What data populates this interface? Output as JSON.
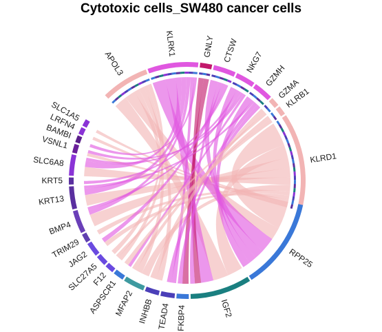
{
  "chart_data": {
    "type": "chord",
    "title": "Cytotoxic cells_SW480 cancer cells",
    "sources": [
      {
        "name": "APOL3",
        "color": "#f2b4b4",
        "weight": 3.2
      },
      {
        "name": "KLRK1",
        "color": "#e057e0",
        "weight": 3.4
      },
      {
        "name": "GNLY",
        "color": "#c2186b",
        "weight": 0.8
      },
      {
        "name": "CTSW",
        "color": "#e057e0",
        "weight": 1.5
      },
      {
        "name": "NKG7",
        "color": "#e057e0",
        "weight": 1.3
      },
      {
        "name": "GZMH",
        "color": "#e057e0",
        "weight": 1.3
      },
      {
        "name": "GZMA",
        "color": "#f2b4b4",
        "weight": 0.6
      },
      {
        "name": "KLRB1",
        "color": "#f2b4b4",
        "weight": 0.6
      },
      {
        "name": "KLRD1",
        "color": "#f2b4b4",
        "weight": 6.6
      }
    ],
    "targets": [
      {
        "name": "RPP25",
        "color": "#3a78d8",
        "weight": 5.2
      },
      {
        "name": "IGF2",
        "color": "#1a7f80",
        "weight": 3.5
      },
      {
        "name": "FKBP4",
        "color": "#3a78d8",
        "weight": 0.7
      },
      {
        "name": "TEAD4",
        "color": "#4b3fb8",
        "weight": 0.8
      },
      {
        "name": "INHBB",
        "color": "#4b3fb8",
        "weight": 0.8
      },
      {
        "name": "MFAP2",
        "color": "#3e9aa0",
        "weight": 1.2
      },
      {
        "name": "ASPSCR1",
        "color": "#3a78d8",
        "weight": 0.6
      },
      {
        "name": "F12",
        "color": "#6a4ae0",
        "weight": 0.5
      },
      {
        "name": "SLC27A5",
        "color": "#6a4ae0",
        "weight": 0.6
      },
      {
        "name": "JAG2",
        "color": "#6a4ae0",
        "weight": 0.8
      },
      {
        "name": "TRIM29",
        "color": "#5f3fb0",
        "weight": 0.5
      },
      {
        "name": "BMP4",
        "color": "#6a3fb8",
        "weight": 1.3
      },
      {
        "name": "KRT13",
        "color": "#5a2f9f",
        "weight": 1.3
      },
      {
        "name": "KRT5",
        "color": "#5a2f9f",
        "weight": 0.4
      },
      {
        "name": "SLC6A8",
        "color": "#8a33d6",
        "weight": 1.2
      },
      {
        "name": "VSNL1",
        "color": "#6a1f9a",
        "weight": 0.5
      },
      {
        "name": "BAMBI",
        "color": "#5a1f8a",
        "weight": 0.4
      },
      {
        "name": "LRFN4",
        "color": "#8a33d6",
        "weight": 0.4
      },
      {
        "name": "SLC1A5",
        "color": "#8a33d6",
        "weight": 0.4
      }
    ],
    "links": [
      {
        "source": "KLRD1",
        "target": "RPP25",
        "value": 1.8
      },
      {
        "source": "KLRD1",
        "target": "IGF2",
        "value": 1.0
      },
      {
        "source": "KLRD1",
        "target": "BMP4",
        "value": 0.8
      },
      {
        "source": "KLRD1",
        "target": "KRT13",
        "value": 0.7
      },
      {
        "source": "KLRD1",
        "target": "SLC6A8",
        "value": 0.6
      },
      {
        "source": "KLRD1",
        "target": "MFAP2",
        "value": 0.5
      },
      {
        "source": "KLRD1",
        "target": "TRIM29",
        "value": 0.3
      },
      {
        "source": "KLRD1",
        "target": "JAG2",
        "value": 0.3
      },
      {
        "source": "KLRD1",
        "target": "VSNL1",
        "value": 0.2
      },
      {
        "source": "KLRD1",
        "target": "SLC1A5",
        "value": 0.2
      },
      {
        "source": "KLRD1",
        "target": "LRFN4",
        "value": 0.2
      },
      {
        "source": "APOL3",
        "target": "IGF2",
        "value": 1.0
      },
      {
        "source": "APOL3",
        "target": "RPP25",
        "value": 0.8
      },
      {
        "source": "APOL3",
        "target": "MFAP2",
        "value": 0.4
      },
      {
        "source": "APOL3",
        "target": "INHBB",
        "value": 0.4
      },
      {
        "source": "APOL3",
        "target": "SLC27A5",
        "value": 0.3
      },
      {
        "source": "APOL3",
        "target": "F12",
        "value": 0.3
      },
      {
        "source": "KLRK1",
        "target": "RPP25",
        "value": 1.0
      },
      {
        "source": "KLRK1",
        "target": "IGF2",
        "value": 0.8
      },
      {
        "source": "KLRK1",
        "target": "SLC6A8",
        "value": 0.4
      },
      {
        "source": "KLRK1",
        "target": "KRT13",
        "value": 0.4
      },
      {
        "source": "KLRK1",
        "target": "BMP4",
        "value": 0.3
      },
      {
        "source": "KLRK1",
        "target": "TEAD4",
        "value": 0.3
      },
      {
        "source": "KLRK1",
        "target": "BAMBI",
        "value": 0.2
      },
      {
        "source": "GNLY",
        "target": "IGF2",
        "value": 0.4
      },
      {
        "source": "GNLY",
        "target": "FKBP4",
        "value": 0.4
      },
      {
        "source": "CTSW",
        "target": "RPP25",
        "value": 0.6
      },
      {
        "source": "CTSW",
        "target": "IGF2",
        "value": 0.3
      },
      {
        "source": "CTSW",
        "target": "JAG2",
        "value": 0.3
      },
      {
        "source": "CTSW",
        "target": "KRT5",
        "value": 0.2
      },
      {
        "source": "NKG7",
        "target": "RPP25",
        "value": 0.5
      },
      {
        "source": "NKG7",
        "target": "SLC6A8",
        "value": 0.2
      },
      {
        "source": "NKG7",
        "target": "BMP4",
        "value": 0.2
      },
      {
        "source": "NKG7",
        "target": "VSNL1",
        "value": 0.2
      },
      {
        "source": "NKG7",
        "target": "ASPSCR1",
        "value": 0.2
      },
      {
        "source": "GZMH",
        "target": "RPP25",
        "value": 0.5
      },
      {
        "source": "GZMH",
        "target": "KRT13",
        "value": 0.2
      },
      {
        "source": "GZMH",
        "target": "TEAD4",
        "value": 0.3
      },
      {
        "source": "GZMH",
        "target": "FKBP4",
        "value": 0.3
      },
      {
        "source": "KLRB1",
        "target": "MFAP2",
        "value": 0.3
      },
      {
        "source": "KLRB1",
        "target": "ASPSCR1",
        "value": 0.3
      },
      {
        "source": "GZMA",
        "target": "INHBB",
        "value": 0.4
      },
      {
        "source": "GZMA",
        "target": "F12",
        "value": 0.2
      }
    ]
  }
}
